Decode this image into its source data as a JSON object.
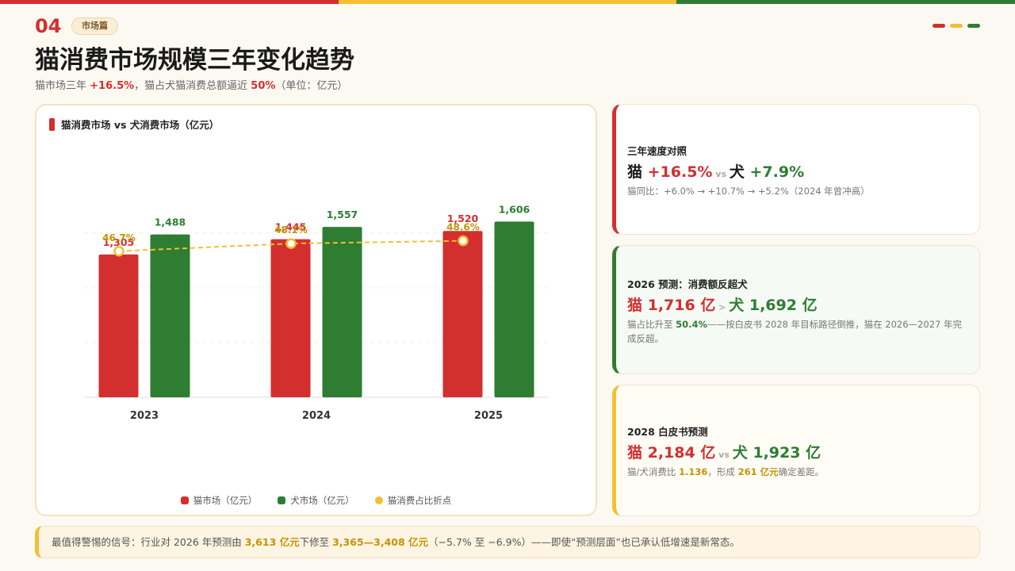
{
  "colors": {
    "red": "#d32f2f",
    "yellow": "#f4bf32",
    "green": "#2e7d32",
    "gold": "#c59300"
  },
  "header": {
    "page_number": "04",
    "tag": "市场篇",
    "title": "猫消费市场规模三年变化趋势",
    "subtitle": {
      "part1": "猫市场三年 ",
      "hl1": "+16.5%",
      "part2": "，猫占犬猫消费总额逼近 ",
      "hl2": "50%",
      "part3": "（单位：亿元）"
    }
  },
  "chart_data": {
    "type": "bar",
    "title": "猫消费市场 vs 犬消费市场（亿元）",
    "categories": [
      "2023",
      "2024",
      "2025"
    ],
    "series": [
      {
        "name": "猫市场（亿元）",
        "values": [
          1305,
          1445,
          1520
        ],
        "value_labels": [
          "1,305",
          "1,445",
          "1,520"
        ],
        "color": "#d32f2f"
      },
      {
        "name": "犬市场（亿元）",
        "values": [
          1488,
          1557,
          1606
        ],
        "value_labels": [
          "1,488",
          "1,557",
          "1,606"
        ],
        "color": "#2e7d32"
      }
    ],
    "line_series": {
      "name": "猫消费占比折点",
      "values": [
        46.7,
        48.1,
        48.6
      ],
      "value_labels": [
        "46.7%",
        "48.1%",
        "48.6%"
      ],
      "color": "#f4bf32"
    },
    "ylim": [
      0,
      2000
    ],
    "line_ylim": [
      20,
      60
    ],
    "grid": true,
    "legend": "bottom"
  },
  "cards": [
    {
      "label": "三年速度对照",
      "cat_word": "猫",
      "cat_value": " +16.5%",
      "sep": " vs ",
      "dog_word": "犬",
      "dog_value": " +7.9%",
      "note": "猫同比：+6.0% → +10.7% → +5.2%（2024 年曾冲高）"
    },
    {
      "label": "2026 预测：消费额反超犬",
      "cat_text": "猫 1,716 亿",
      "sep": " > ",
      "dog_text": "犬 1,692 亿",
      "note_part1": "猫占比升至 ",
      "note_hl": "50.4%",
      "note_part2": "——按白皮书 2028 年目标路径倒推，猫在 2026—2027 年完成反超。"
    },
    {
      "label": "2028 白皮书预测",
      "cat_text": "猫 2,184 亿",
      "sep": " vs ",
      "dog_text": "犬 1,923 亿",
      "note_part1": "猫/犬消费比 ",
      "note_hl1": "1.136",
      "note_part2": "，形成 ",
      "note_hl2": "261 亿元",
      "note_part3": "确定差距。"
    }
  ],
  "footer": {
    "part1": "最值得警惕的信号：行业对 2026 年预测由 ",
    "hl1": "3,613 亿元",
    "part2": "下修至 ",
    "hl2": "3,365—3,408 亿元",
    "part3": "（−5.7% 至 −6.9%）——即使“预测层面”也已承认低增速是新常态。"
  }
}
